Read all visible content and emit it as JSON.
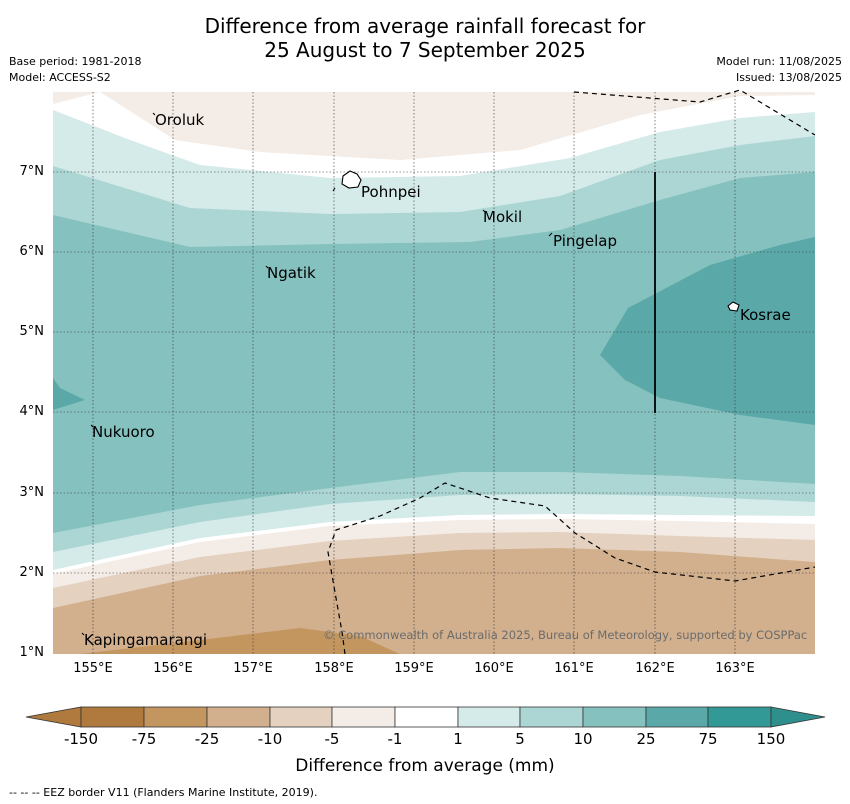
{
  "title_line1": "Difference from average rainfall forecast for",
  "title_line2": "25 August to 7 September 2025",
  "meta": {
    "base_period": "Base period: 1981-2018",
    "model": "Model: ACCESS-S2",
    "model_run": "Model run: 11/08/2025",
    "issued": "Issued: 13/08/2025"
  },
  "map": {
    "lat_ticks": [
      "7°N",
      "6°N",
      "5°N",
      "4°N",
      "3°N",
      "2°N",
      "1°N"
    ],
    "lon_ticks": [
      "155°E",
      "156°E",
      "157°E",
      "158°E",
      "159°E",
      "160°E",
      "161°E",
      "162°E",
      "163°E"
    ],
    "places": {
      "oroluk": "Oroluk",
      "pohnpei": "Pohnpei",
      "mokil": "Mokil",
      "pingelap": "Pingelap",
      "ngatik": "Ngatik",
      "kosrae": "Kosrae",
      "nukuoro": "Nukuoro",
      "kapingamarangi": "Kapingamarangi"
    },
    "copyright": "© Commonwealth of Australia 2025, Bureau of Meteorology, supported by COSPPac",
    "colors": {
      "brown_150": "#b07a3e",
      "brown_75": "#c4965f",
      "brown_25": "#d2b08e",
      "brown_10": "#e4d1bf",
      "brown_5": "#f4ece6",
      "white": "#ffffff",
      "teal_5": "#d5ebe9",
      "teal_10": "#acd6d4",
      "teal_25": "#85c1bf",
      "teal_75": "#5aa9a8",
      "teal_150": "#339996"
    }
  },
  "colorbar": {
    "labels": [
      "-150",
      "-75",
      "-25",
      "-10",
      "-5",
      "-1",
      "1",
      "5",
      "10",
      "25",
      "75",
      "150"
    ],
    "title": "Difference from average (mm)"
  },
  "footnote": "--  --  -- EEZ border V11 (Flanders Marine Institute, 2019)."
}
